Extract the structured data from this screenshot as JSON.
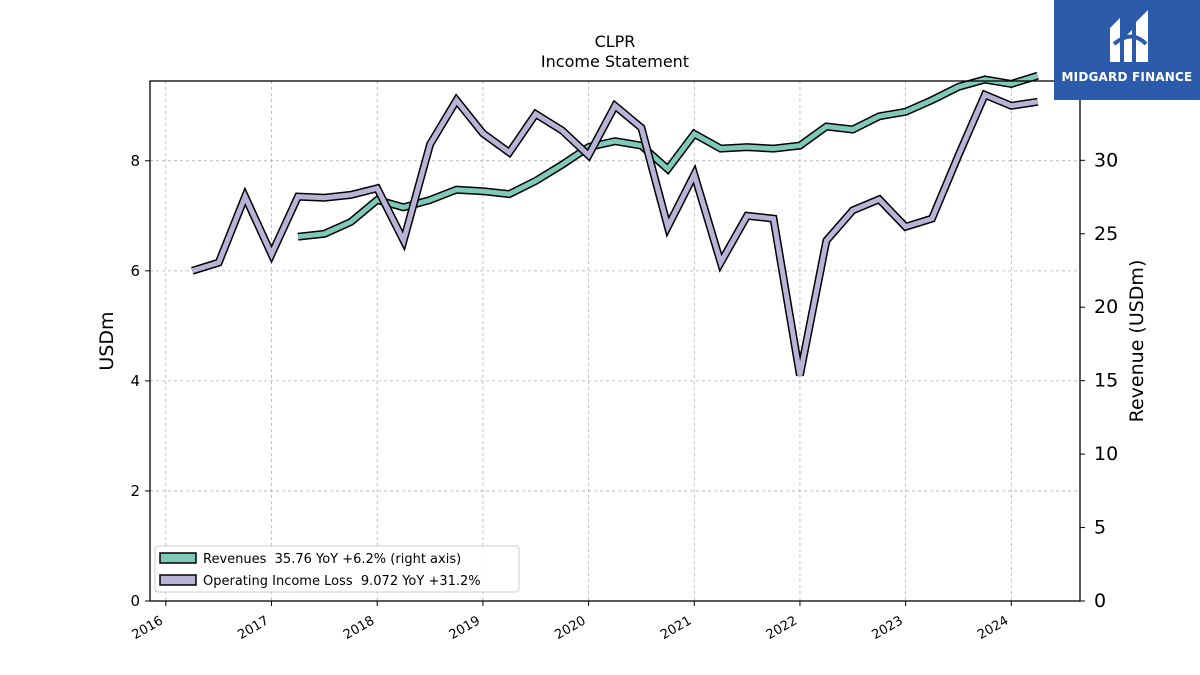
{
  "chart_data": {
    "type": "line",
    "title": "CLPR",
    "subtitle": "Income Statement",
    "ylabel_left": "USDm",
    "ylabel_right": "Revenue (USDm)",
    "xlim": [
      2015.85,
      2024.65
    ],
    "ylim_left": [
      0,
      9.45
    ],
    "ylim_right": [
      0,
      35.4
    ],
    "x_ticks": [
      2016,
      2017,
      2018,
      2019,
      2020,
      2021,
      2022,
      2023,
      2024
    ],
    "y_ticks_left": [
      0,
      2,
      4,
      6,
      8
    ],
    "y_ticks_right": [
      0,
      5,
      10,
      15,
      20,
      25,
      30,
      35
    ],
    "grid": true,
    "legend_position": "lower-left",
    "series": [
      {
        "name": "Revenues  35.76 YoY +6.2% (right axis)",
        "axis": "right",
        "color": "#7fc9b8",
        "x": [
          2017.25,
          2017.5,
          2017.75,
          2018.0,
          2018.25,
          2018.5,
          2018.75,
          2019.0,
          2019.25,
          2019.5,
          2019.75,
          2020.0,
          2020.25,
          2020.5,
          2020.75,
          2021.0,
          2021.25,
          2021.5,
          2021.75,
          2022.0,
          2022.25,
          2022.5,
          2022.75,
          2023.0,
          2023.25,
          2023.5,
          2023.75,
          2024.0,
          2024.25
        ],
        "values": [
          24.8,
          25.0,
          25.8,
          27.3,
          26.8,
          27.3,
          28.0,
          27.9,
          27.7,
          28.6,
          29.7,
          30.9,
          31.3,
          31.0,
          29.4,
          31.8,
          30.8,
          30.9,
          30.8,
          31.0,
          32.3,
          32.1,
          33.0,
          33.3,
          34.1,
          35.0,
          35.5,
          35.2,
          35.76
        ]
      },
      {
        "name": "Operating Income Loss  9.072 YoY +31.2%",
        "axis": "left",
        "color": "#b8b4d8",
        "x": [
          2016.25,
          2016.5,
          2016.75,
          2017.0,
          2017.25,
          2017.5,
          2017.75,
          2018.0,
          2018.25,
          2018.5,
          2018.75,
          2019.0,
          2019.25,
          2019.5,
          2019.75,
          2020.0,
          2020.25,
          2020.5,
          2020.75,
          2021.0,
          2021.25,
          2021.5,
          2021.75,
          2022.0,
          2022.25,
          2022.5,
          2022.75,
          2023.0,
          2023.25,
          2023.5,
          2023.75,
          2024.0,
          2024.25
        ],
        "values": [
          6.0,
          6.15,
          7.35,
          6.3,
          7.35,
          7.33,
          7.38,
          7.5,
          6.55,
          8.3,
          9.1,
          8.5,
          8.15,
          8.85,
          8.55,
          8.1,
          9.0,
          8.6,
          6.8,
          7.75,
          6.15,
          7.0,
          6.95,
          4.1,
          6.55,
          7.1,
          7.3,
          6.8,
          6.95,
          8.1,
          9.2,
          9.0,
          9.072
        ]
      }
    ]
  },
  "logo": {
    "text": "MIDGARD FINANCE"
  }
}
